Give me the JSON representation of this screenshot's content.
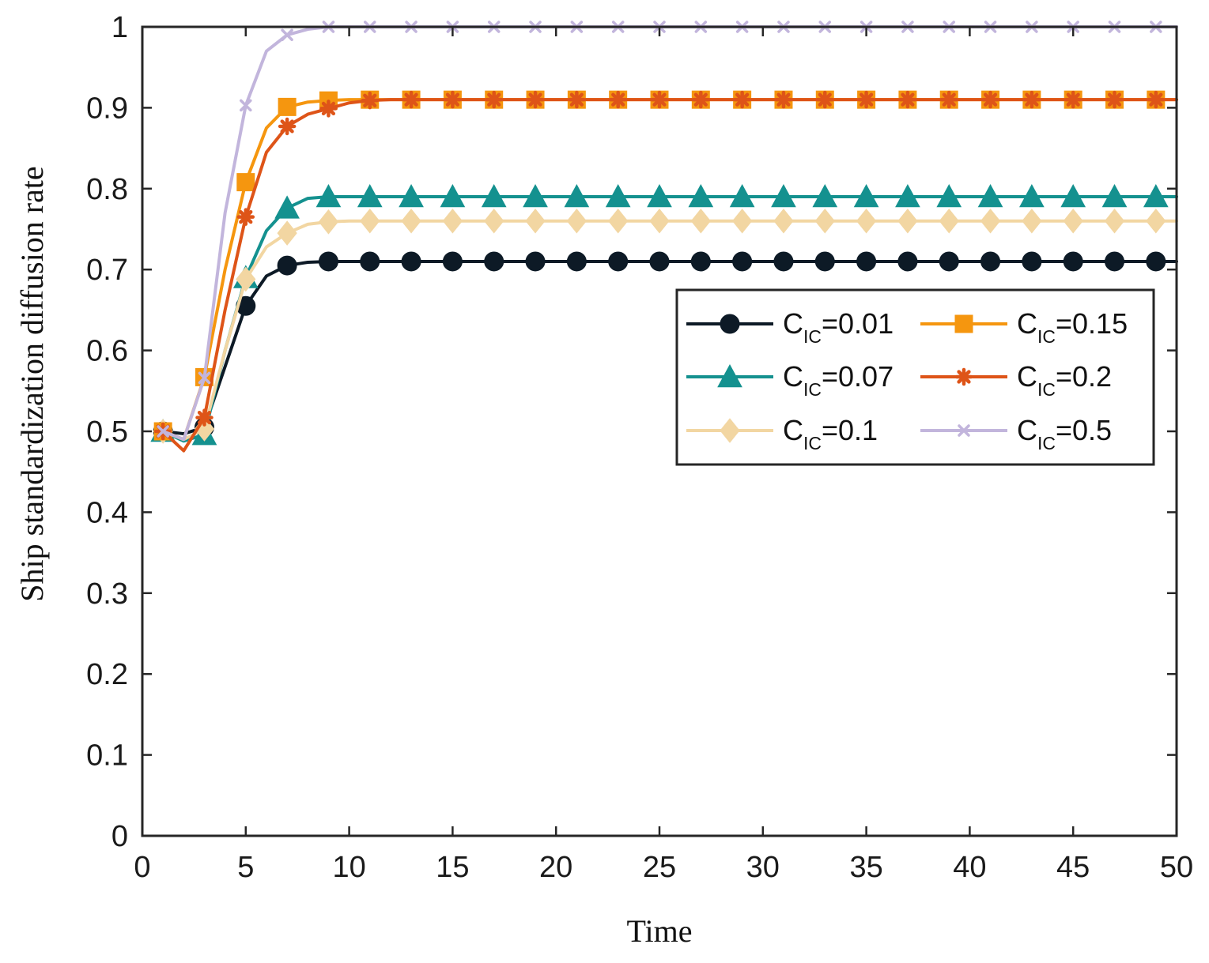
{
  "chart_data": {
    "type": "line",
    "title": "",
    "xlabel": "Time",
    "ylabel": "Ship standardization diffusion rate",
    "xlim": [
      0,
      50
    ],
    "ylim": [
      0,
      1
    ],
    "xticks": [
      0,
      5,
      10,
      15,
      20,
      25,
      30,
      35,
      40,
      45,
      50
    ],
    "yticks": [
      0,
      0.1,
      0.2,
      0.3,
      0.4,
      0.5,
      0.6,
      0.7,
      0.8,
      0.9,
      1
    ],
    "xtick_labels": [
      "0",
      "5",
      "10",
      "15",
      "20",
      "25",
      "30",
      "35",
      "40",
      "45",
      "50"
    ],
    "ytick_labels": [
      "0",
      "0.1",
      "0.2",
      "0.3",
      "0.4",
      "0.5",
      "0.6",
      "0.7",
      "0.8",
      "0.9",
      "1"
    ],
    "grid": false,
    "legend_position": "center-right",
    "x": [
      1,
      2,
      3,
      4,
      5,
      6,
      7,
      8,
      9,
      10,
      11,
      12,
      13,
      14,
      15,
      16,
      17,
      18,
      19,
      20,
      21,
      22,
      23,
      24,
      25,
      26,
      27,
      28,
      29,
      30,
      31,
      32,
      33,
      34,
      35,
      36,
      37,
      38,
      39,
      40,
      41,
      42,
      43,
      44,
      45,
      46,
      47,
      48,
      49,
      50
    ],
    "series": [
      {
        "name": "C_IC=0.01",
        "legend_main": "C",
        "legend_sub": "IC",
        "legend_value": "=0.01",
        "color": "#0d1a26",
        "marker": "circle",
        "values": [
          0.5,
          0.497,
          0.505,
          0.58,
          0.655,
          0.692,
          0.705,
          0.709,
          0.71,
          0.71,
          0.71,
          0.71,
          0.71,
          0.71,
          0.71,
          0.71,
          0.71,
          0.71,
          0.71,
          0.71,
          0.71,
          0.71,
          0.71,
          0.71,
          0.71,
          0.71,
          0.71,
          0.71,
          0.71,
          0.71,
          0.71,
          0.71,
          0.71,
          0.71,
          0.71,
          0.71,
          0.71,
          0.71,
          0.71,
          0.71,
          0.71,
          0.71,
          0.71,
          0.71,
          0.71,
          0.71,
          0.71,
          0.71,
          0.71,
          0.71
        ]
      },
      {
        "name": "C_IC=0.07",
        "legend_main": "C",
        "legend_sub": "IC",
        "legend_value": "=0.07",
        "color": "#14918f",
        "marker": "triangle",
        "values": [
          0.5,
          0.488,
          0.496,
          0.6,
          0.69,
          0.748,
          0.776,
          0.788,
          0.79,
          0.79,
          0.79,
          0.79,
          0.79,
          0.79,
          0.79,
          0.79,
          0.79,
          0.79,
          0.79,
          0.79,
          0.79,
          0.79,
          0.79,
          0.79,
          0.79,
          0.79,
          0.79,
          0.79,
          0.79,
          0.79,
          0.79,
          0.79,
          0.79,
          0.79,
          0.79,
          0.79,
          0.79,
          0.79,
          0.79,
          0.79,
          0.79,
          0.79,
          0.79,
          0.79,
          0.79,
          0.79,
          0.79,
          0.79,
          0.79,
          0.79
        ]
      },
      {
        "name": "C_IC=0.1",
        "legend_main": "C",
        "legend_sub": "IC",
        "legend_value": "=0.1",
        "color": "#f2d6a2",
        "marker": "diamond",
        "values": [
          0.5,
          0.49,
          0.503,
          0.6,
          0.688,
          0.728,
          0.745,
          0.756,
          0.759,
          0.76,
          0.76,
          0.76,
          0.76,
          0.76,
          0.76,
          0.76,
          0.76,
          0.76,
          0.76,
          0.76,
          0.76,
          0.76,
          0.76,
          0.76,
          0.76,
          0.76,
          0.76,
          0.76,
          0.76,
          0.76,
          0.76,
          0.76,
          0.76,
          0.76,
          0.76,
          0.76,
          0.76,
          0.76,
          0.76,
          0.76,
          0.76,
          0.76,
          0.76,
          0.76,
          0.76,
          0.76,
          0.76,
          0.76,
          0.76,
          0.76
        ]
      },
      {
        "name": "C_IC=0.15",
        "legend_main": "C",
        "legend_sub": "IC",
        "legend_value": "=0.15",
        "color": "#f5960f",
        "marker": "square",
        "values": [
          0.5,
          0.49,
          0.567,
          0.7,
          0.808,
          0.875,
          0.901,
          0.907,
          0.909,
          0.91,
          0.91,
          0.91,
          0.91,
          0.91,
          0.91,
          0.91,
          0.91,
          0.91,
          0.91,
          0.91,
          0.91,
          0.91,
          0.91,
          0.91,
          0.91,
          0.91,
          0.91,
          0.91,
          0.91,
          0.91,
          0.91,
          0.91,
          0.91,
          0.91,
          0.91,
          0.91,
          0.91,
          0.91,
          0.91,
          0.91,
          0.91,
          0.91,
          0.91,
          0.91,
          0.91,
          0.91,
          0.91,
          0.91,
          0.91,
          0.91
        ]
      },
      {
        "name": "C_IC=0.2",
        "legend_main": "C",
        "legend_sub": "IC",
        "legend_value": "=0.2",
        "color": "#de5418",
        "marker": "asterisk",
        "values": [
          0.5,
          0.476,
          0.517,
          0.65,
          0.765,
          0.845,
          0.877,
          0.892,
          0.899,
          0.906,
          0.909,
          0.91,
          0.91,
          0.91,
          0.91,
          0.91,
          0.91,
          0.91,
          0.91,
          0.91,
          0.91,
          0.91,
          0.91,
          0.91,
          0.91,
          0.91,
          0.91,
          0.91,
          0.91,
          0.91,
          0.91,
          0.91,
          0.91,
          0.91,
          0.91,
          0.91,
          0.91,
          0.91,
          0.91,
          0.91,
          0.91,
          0.91,
          0.91,
          0.91,
          0.91,
          0.91,
          0.91,
          0.91,
          0.91,
          0.91
        ]
      },
      {
        "name": "C_IC=0.5",
        "legend_main": "C",
        "legend_sub": "IC",
        "legend_value": "=0.5",
        "color": "#c2b5dc",
        "marker": "x",
        "values": [
          0.5,
          0.49,
          0.566,
          0.77,
          0.903,
          0.97,
          0.99,
          0.997,
          1.0,
          1.0,
          1.0,
          1.0,
          1.0,
          1.0,
          1.0,
          1.0,
          1.0,
          1.0,
          1.0,
          1.0,
          1.0,
          1.0,
          1.0,
          1.0,
          1.0,
          1.0,
          1.0,
          1.0,
          1.0,
          1.0,
          1.0,
          1.0,
          1.0,
          1.0,
          1.0,
          1.0,
          1.0,
          1.0,
          1.0,
          1.0,
          1.0,
          1.0,
          1.0,
          1.0,
          1.0,
          1.0,
          1.0,
          1.0,
          1.0,
          1.0
        ]
      }
    ]
  }
}
